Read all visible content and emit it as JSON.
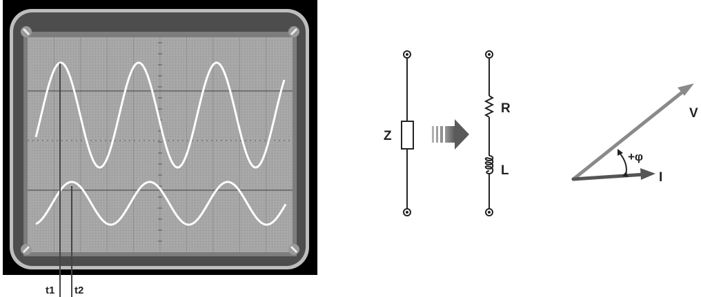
{
  "oscilloscope": {
    "marker_t1": "t1",
    "marker_t2": "t2"
  },
  "circuit": {
    "impedance_label": "Z",
    "resistor_label": "R",
    "inductor_label": "L"
  },
  "phasor": {
    "voltage_label": "V",
    "current_label": "I",
    "angle_label": "+φ"
  },
  "colors": {
    "screen_background": "#a9a9a9",
    "bezel": "#4a4a4a",
    "trace": "#ffffff",
    "wire": "#222222",
    "phasor_voltage": "#8a8a8a",
    "phasor_current": "#555555",
    "arrow": "#707070"
  }
}
